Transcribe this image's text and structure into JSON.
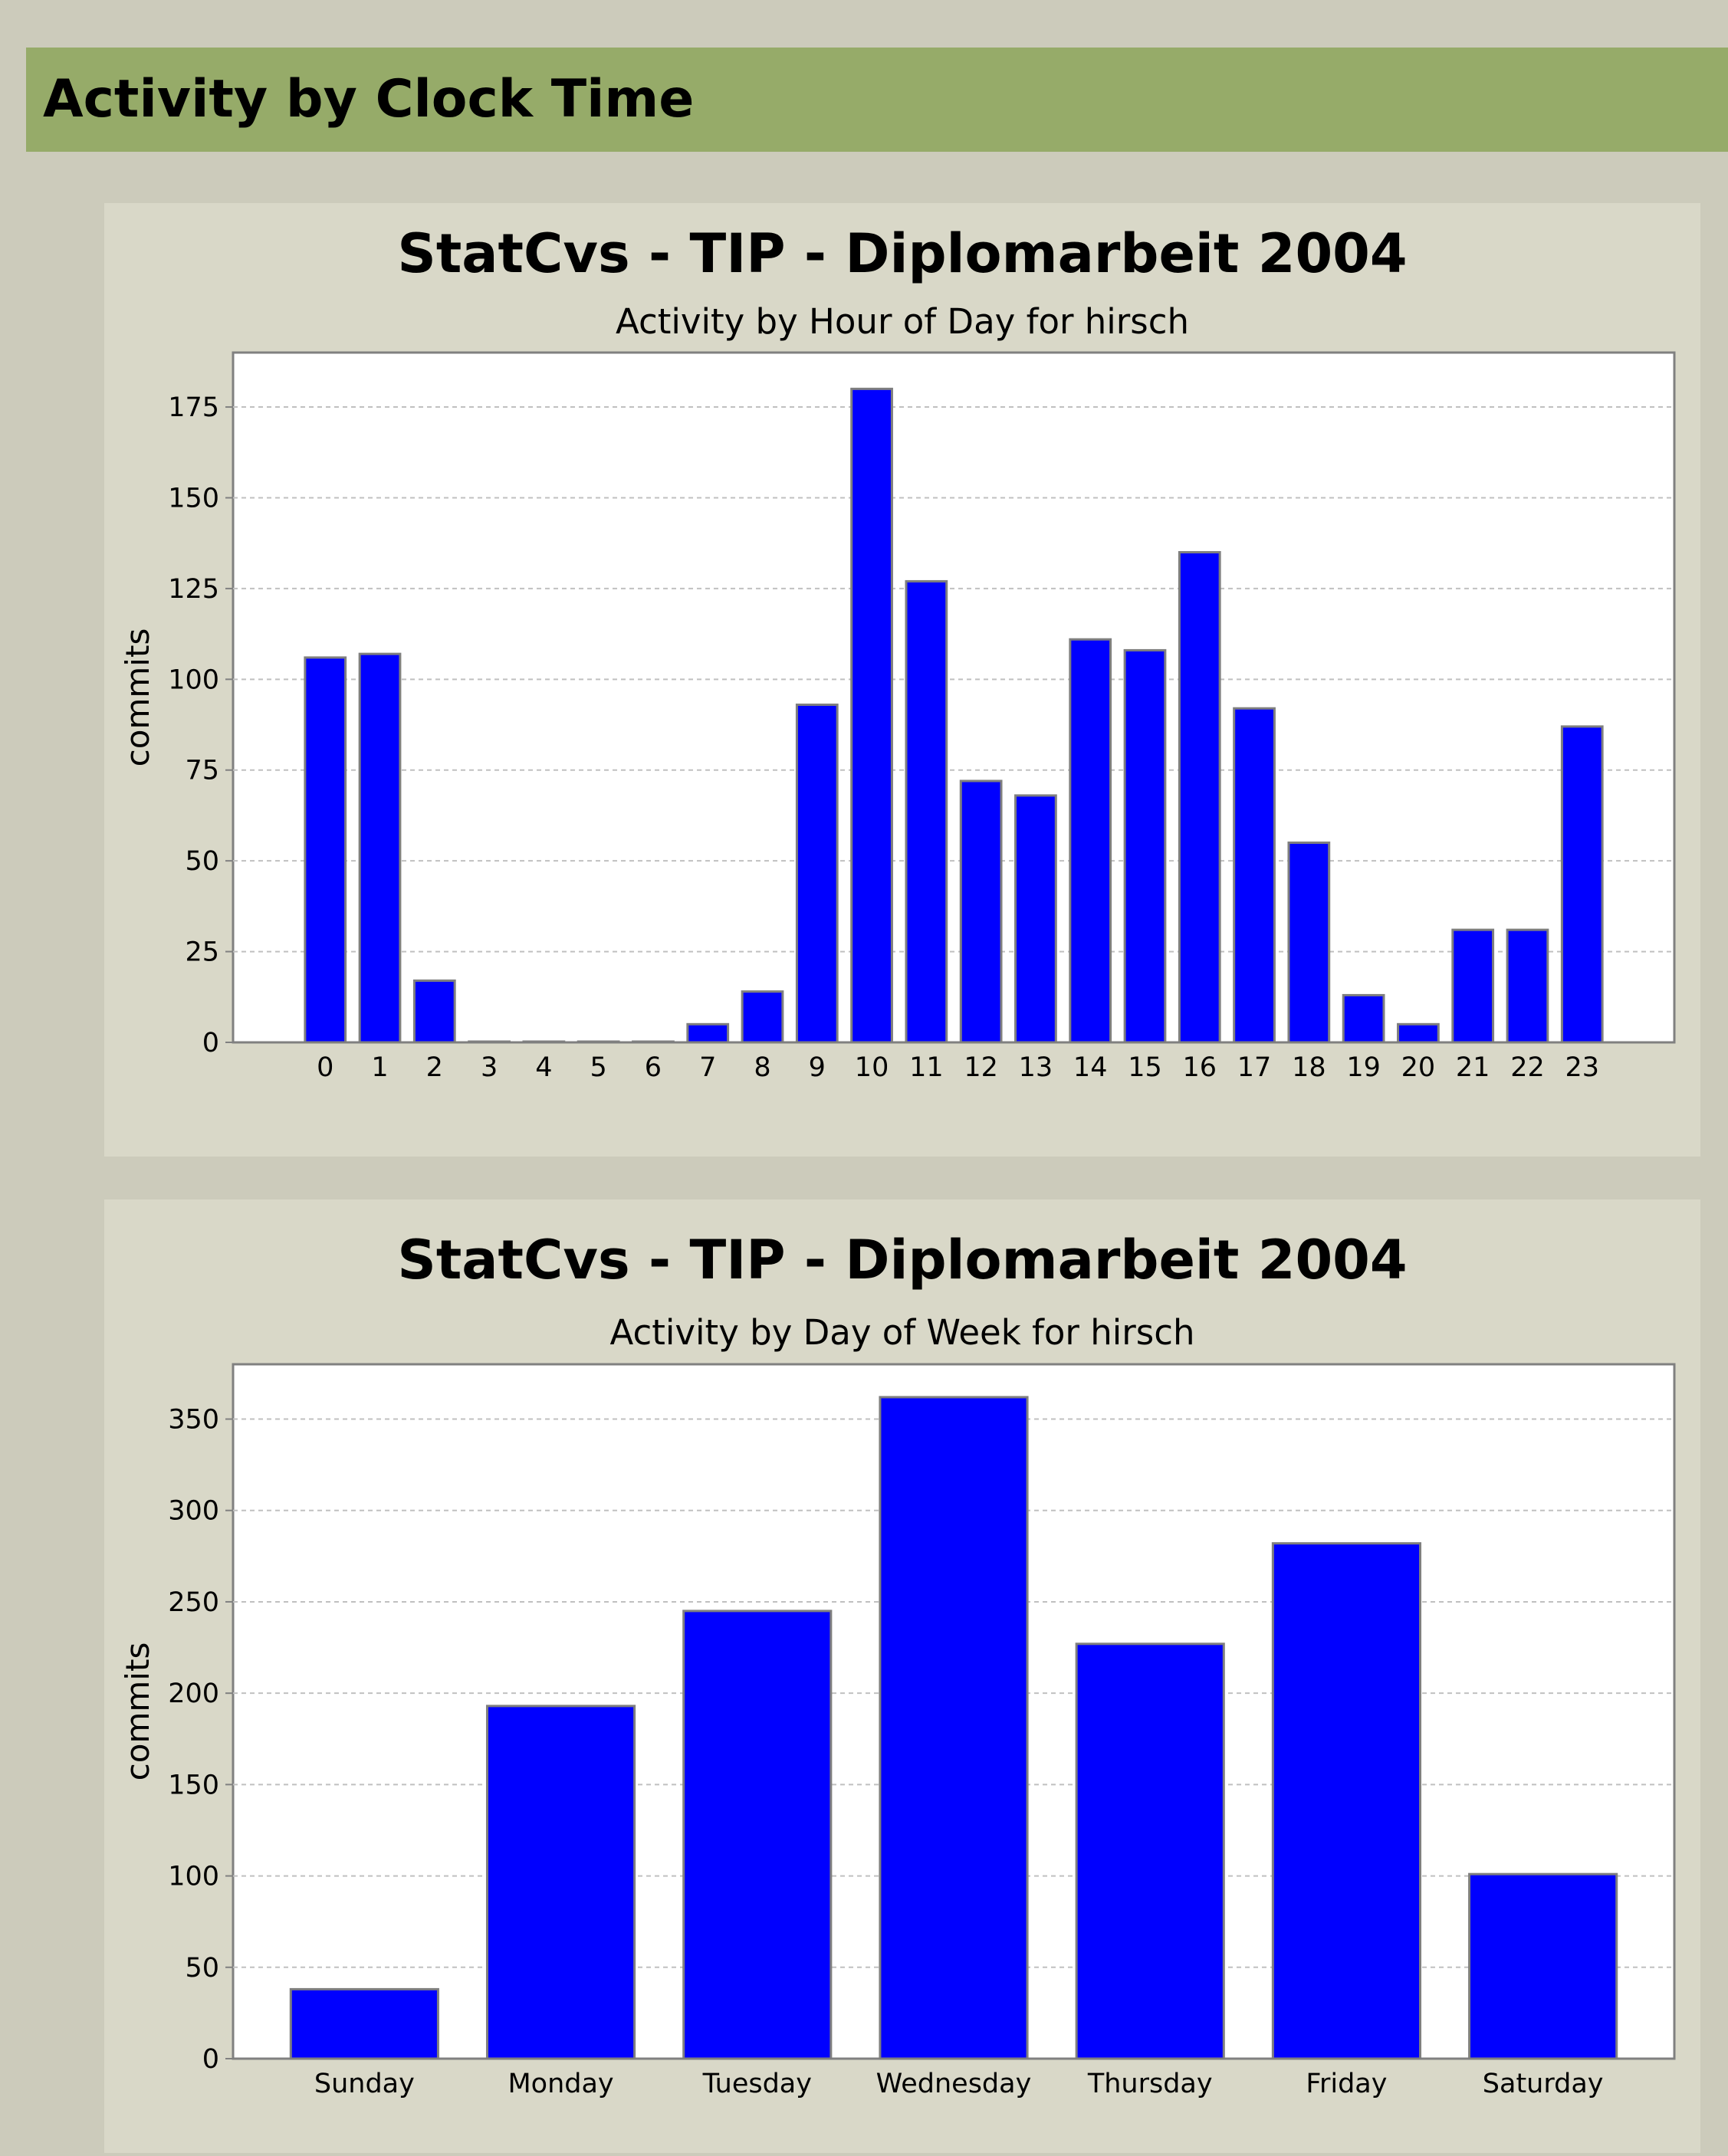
{
  "section": {
    "title": "Activity by Clock Time"
  },
  "colors": {
    "page_background": "#cccbbb",
    "header_background": "#96ab69",
    "panel_background": "#d9d8c8",
    "plot_background": "#ffffff",
    "bar_fill": "#0000ff",
    "bar_stroke": "#7f7f7f",
    "grid": "#c0c0c0"
  },
  "chart_data": [
    {
      "type": "bar",
      "title": "StatCvs - TIP - Diplomarbeit 2004",
      "subtitle": "Activity by Hour of Day for hirsch",
      "xlabel": "",
      "ylabel": "commits",
      "categories": [
        "0",
        "1",
        "2",
        "3",
        "4",
        "5",
        "6",
        "7",
        "8",
        "9",
        "10",
        "11",
        "12",
        "13",
        "14",
        "15",
        "16",
        "17",
        "18",
        "19",
        "20",
        "21",
        "22",
        "23"
      ],
      "values": [
        106,
        107,
        17,
        0,
        0,
        0,
        0,
        5,
        14,
        93,
        180,
        127,
        72,
        68,
        111,
        108,
        135,
        92,
        55,
        13,
        5,
        31,
        31,
        87
      ],
      "ylim": [
        0,
        190
      ],
      "yticks": [
        0,
        25,
        50,
        75,
        100,
        125,
        150,
        175
      ],
      "grid": true,
      "legend": "none"
    },
    {
      "type": "bar",
      "title": "StatCvs - TIP - Diplomarbeit 2004",
      "subtitle": "Activity by Day of Week for hirsch",
      "xlabel": "",
      "ylabel": "commits",
      "categories": [
        "Sunday",
        "Monday",
        "Tuesday",
        "Wednesday",
        "Thursday",
        "Friday",
        "Saturday"
      ],
      "values": [
        38,
        193,
        245,
        362,
        227,
        282,
        101
      ],
      "ylim": [
        0,
        380
      ],
      "yticks": [
        0,
        50,
        100,
        150,
        200,
        250,
        300,
        350
      ],
      "grid": true,
      "legend": "none"
    }
  ]
}
